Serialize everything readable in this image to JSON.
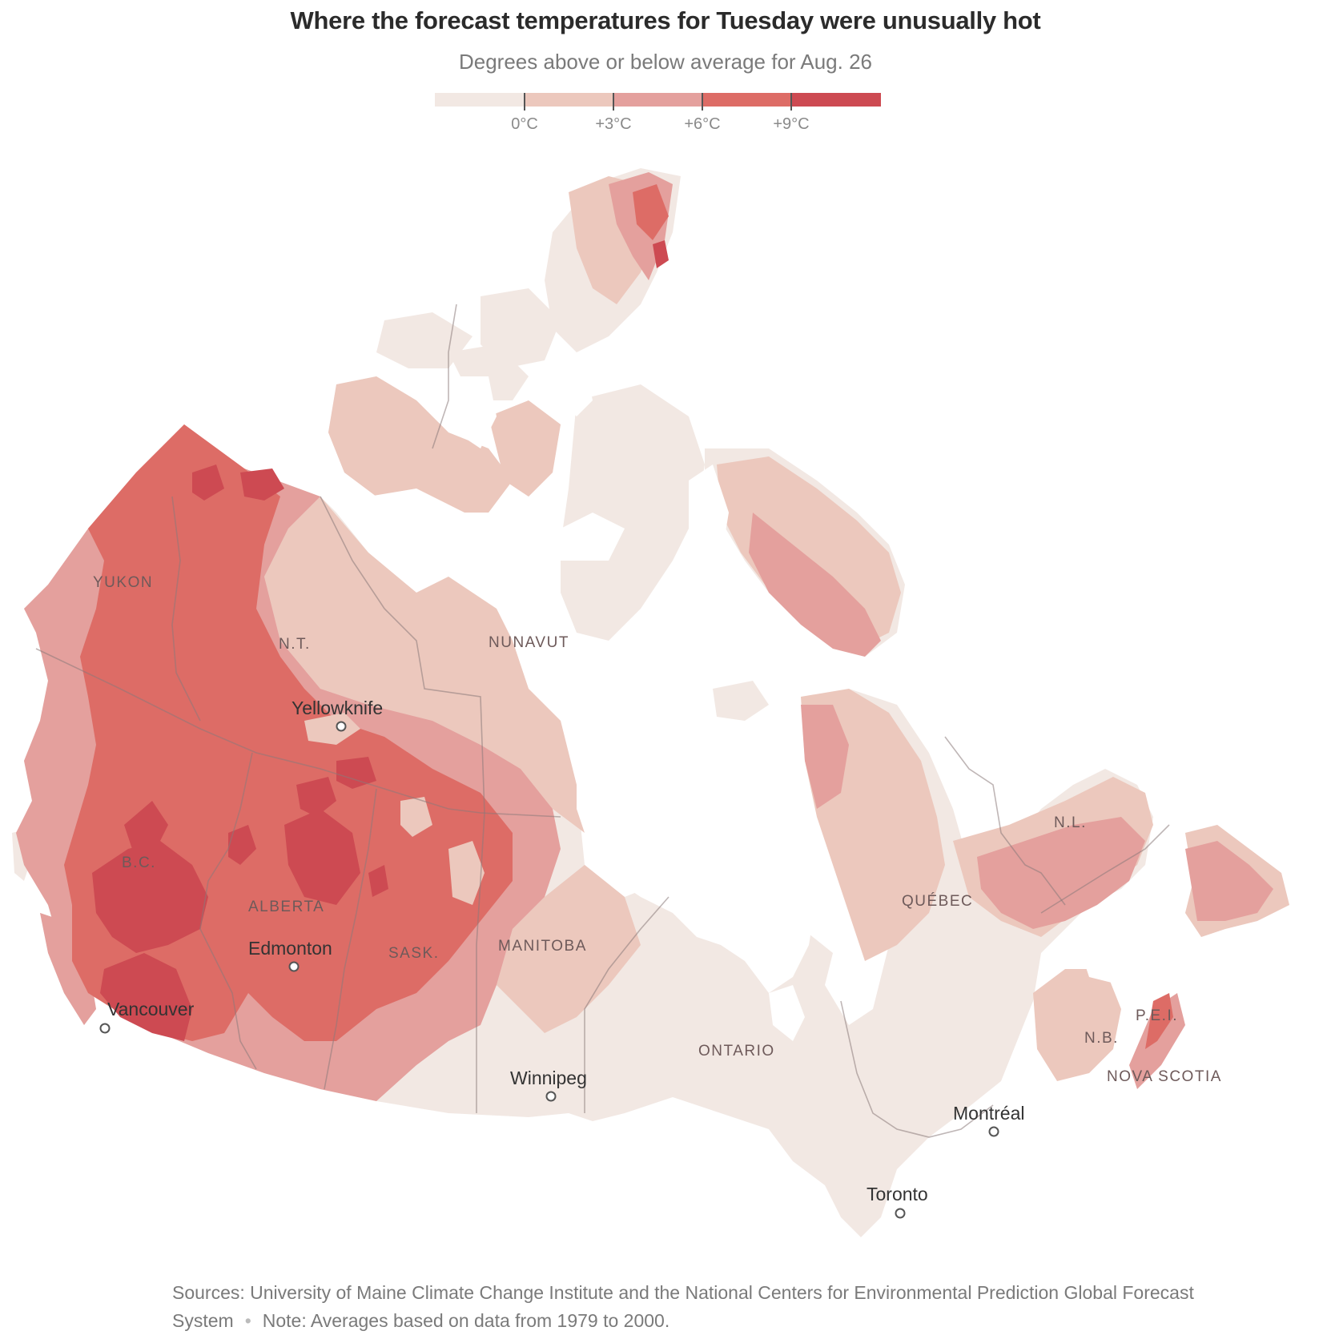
{
  "title": "Where the forecast temperatures for Tuesday were unusually hot",
  "subtitle": "Degrees above or below average for Aug. 26",
  "legend": {
    "ticks": [
      "0°C",
      "+3°C",
      "+6°C",
      "+9°C"
    ],
    "colors": [
      "#f2e8e3",
      "#ecc8bd",
      "#e4a09d",
      "#dd6c66",
      "#cd4a52"
    ]
  },
  "regions": {
    "yukon": "YUKON",
    "nt": "N.T.",
    "nunavut": "NUNAVUT",
    "bc": "B.C.",
    "alberta": "ALBERTA",
    "sask": "SASK.",
    "manitoba": "MANITOBA",
    "ontario": "ONTARIO",
    "quebec": "QUÉBEC",
    "nl": "N.L.",
    "pei": "P.E.I.",
    "nb": "N.B.",
    "ns": "NOVA SCOTIA"
  },
  "cities": {
    "yellowknife": "Yellowknife",
    "edmonton": "Edmonton",
    "vancouver": "Vancouver",
    "winnipeg": "Winnipeg",
    "montreal": "Montréal",
    "toronto": "Toronto"
  },
  "footer": {
    "sources": "Sources: University of Maine Climate Change Institute and the National Centers for Environmental Prediction Global Forecast System",
    "separator": "•",
    "note": "Note: Averages based on data from 1979 to 2000."
  }
}
